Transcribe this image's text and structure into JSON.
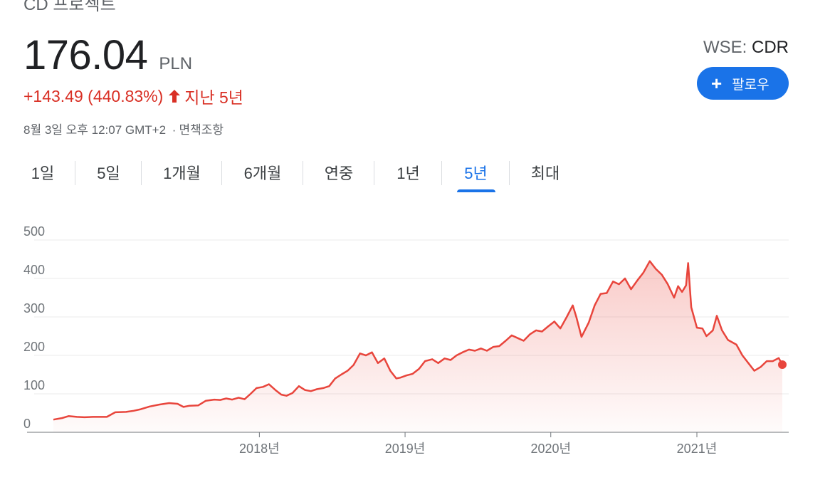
{
  "header": {
    "company_name": "CD 프로젝트",
    "price": "176.04",
    "currency": "PLN",
    "change": "+143.49 (440.83%)",
    "change_period": "지난 5년",
    "timestamp": "8월 3일 오후 12:07 GMT+2",
    "separator": "·",
    "disclaimer": "면책조항",
    "exchange_label": "WSE:",
    "exchange_code": "CDR",
    "follow_label": "팔로우",
    "follow_icon": "plus-icon",
    "change_icon": "arrow-up-icon",
    "change_color": "#d93025",
    "accent_color": "#1a73e8"
  },
  "tabs": [
    {
      "label": "1일",
      "active": false
    },
    {
      "label": "5일",
      "active": false
    },
    {
      "label": "1개월",
      "active": false
    },
    {
      "label": "6개월",
      "active": false
    },
    {
      "label": "연중",
      "active": false
    },
    {
      "label": "1년",
      "active": false
    },
    {
      "label": "5년",
      "active": true
    },
    {
      "label": "최대",
      "active": false
    }
  ],
  "chart_data": {
    "type": "area",
    "ylim": [
      0,
      500
    ],
    "yticks": [
      0,
      100,
      200,
      300,
      400,
      500
    ],
    "xlim": [
      "2016-08-03",
      "2021-08-03"
    ],
    "xticks": [
      {
        "label": "2018년",
        "date": "2018-01-01"
      },
      {
        "label": "2019년",
        "date": "2019-01-01"
      },
      {
        "label": "2020년",
        "date": "2020-01-01"
      },
      {
        "label": "2021년",
        "date": "2021-01-01"
      }
    ],
    "grid": true,
    "line_color": "#e8453c",
    "series": [
      {
        "points": [
          [
            "2016-08-03",
            33
          ],
          [
            "2016-08-25",
            37
          ],
          [
            "2016-09-10",
            42
          ],
          [
            "2016-10-01",
            40
          ],
          [
            "2016-10-20",
            39
          ],
          [
            "2016-11-10",
            40
          ],
          [
            "2016-12-15",
            40
          ],
          [
            "2017-01-05",
            52
          ],
          [
            "2017-02-01",
            53
          ],
          [
            "2017-02-20",
            56
          ],
          [
            "2017-03-10",
            60
          ],
          [
            "2017-04-01",
            67
          ],
          [
            "2017-04-25",
            72
          ],
          [
            "2017-05-20",
            76
          ],
          [
            "2017-06-10",
            74
          ],
          [
            "2017-06-25",
            66
          ],
          [
            "2017-07-10",
            69
          ],
          [
            "2017-08-01",
            70
          ],
          [
            "2017-08-20",
            82
          ],
          [
            "2017-09-10",
            85
          ],
          [
            "2017-09-25",
            84
          ],
          [
            "2017-10-10",
            88
          ],
          [
            "2017-10-25",
            85
          ],
          [
            "2017-11-10",
            90
          ],
          [
            "2017-11-25",
            86
          ],
          [
            "2017-12-10",
            100
          ],
          [
            "2017-12-25",
            115
          ],
          [
            "2018-01-10",
            118
          ],
          [
            "2018-01-25",
            125
          ],
          [
            "2018-02-10",
            110
          ],
          [
            "2018-02-25",
            98
          ],
          [
            "2018-03-10",
            95
          ],
          [
            "2018-03-25",
            102
          ],
          [
            "2018-04-10",
            120
          ],
          [
            "2018-04-25",
            110
          ],
          [
            "2018-05-10",
            107
          ],
          [
            "2018-05-25",
            112
          ],
          [
            "2018-06-10",
            115
          ],
          [
            "2018-06-25",
            120
          ],
          [
            "2018-07-10",
            140
          ],
          [
            "2018-07-25",
            150
          ],
          [
            "2018-08-10",
            160
          ],
          [
            "2018-08-25",
            175
          ],
          [
            "2018-09-10",
            205
          ],
          [
            "2018-09-25",
            200
          ],
          [
            "2018-10-10",
            208
          ],
          [
            "2018-10-25",
            180
          ],
          [
            "2018-11-10",
            192
          ],
          [
            "2018-11-25",
            160
          ],
          [
            "2018-12-10",
            140
          ],
          [
            "2018-12-20",
            142
          ],
          [
            "2019-01-05",
            148
          ],
          [
            "2019-01-20",
            152
          ],
          [
            "2019-02-05",
            165
          ],
          [
            "2019-02-20",
            185
          ],
          [
            "2019-03-10",
            190
          ],
          [
            "2019-03-25",
            180
          ],
          [
            "2019-04-10",
            192
          ],
          [
            "2019-04-25",
            188
          ],
          [
            "2019-05-10",
            200
          ],
          [
            "2019-05-25",
            208
          ],
          [
            "2019-06-10",
            215
          ],
          [
            "2019-06-25",
            212
          ],
          [
            "2019-07-10",
            218
          ],
          [
            "2019-07-25",
            212
          ],
          [
            "2019-08-10",
            222
          ],
          [
            "2019-08-25",
            224
          ],
          [
            "2019-09-10",
            238
          ],
          [
            "2019-09-25",
            252
          ],
          [
            "2019-10-10",
            245
          ],
          [
            "2019-10-25",
            238
          ],
          [
            "2019-11-10",
            255
          ],
          [
            "2019-11-25",
            265
          ],
          [
            "2019-12-10",
            262
          ],
          [
            "2019-12-25",
            275
          ],
          [
            "2020-01-10",
            288
          ],
          [
            "2020-01-25",
            270
          ],
          [
            "2020-02-10",
            300
          ],
          [
            "2020-02-25",
            330
          ],
          [
            "2020-03-05",
            300
          ],
          [
            "2020-03-18",
            248
          ],
          [
            "2020-04-05",
            285
          ],
          [
            "2020-04-20",
            330
          ],
          [
            "2020-05-05",
            360
          ],
          [
            "2020-05-20",
            362
          ],
          [
            "2020-06-05",
            392
          ],
          [
            "2020-06-20",
            385
          ],
          [
            "2020-07-05",
            400
          ],
          [
            "2020-07-20",
            372
          ],
          [
            "2020-08-05",
            395
          ],
          [
            "2020-08-20",
            415
          ],
          [
            "2020-09-05",
            445
          ],
          [
            "2020-09-20",
            425
          ],
          [
            "2020-10-05",
            410
          ],
          [
            "2020-10-20",
            385
          ],
          [
            "2020-11-05",
            350
          ],
          [
            "2020-11-15",
            380
          ],
          [
            "2020-11-25",
            365
          ],
          [
            "2020-12-05",
            382
          ],
          [
            "2020-12-10",
            440
          ],
          [
            "2020-12-18",
            325
          ],
          [
            "2021-01-01",
            272
          ],
          [
            "2021-01-15",
            270
          ],
          [
            "2021-01-25",
            250
          ],
          [
            "2021-02-10",
            265
          ],
          [
            "2021-02-20",
            303
          ],
          [
            "2021-03-05",
            265
          ],
          [
            "2021-03-20",
            240
          ],
          [
            "2021-04-10",
            228
          ],
          [
            "2021-04-25",
            200
          ],
          [
            "2021-05-10",
            180
          ],
          [
            "2021-05-25",
            160
          ],
          [
            "2021-06-10",
            170
          ],
          [
            "2021-06-25",
            185
          ],
          [
            "2021-07-10",
            185
          ],
          [
            "2021-07-25",
            193
          ],
          [
            "2021-08-03",
            176
          ]
        ]
      }
    ]
  }
}
